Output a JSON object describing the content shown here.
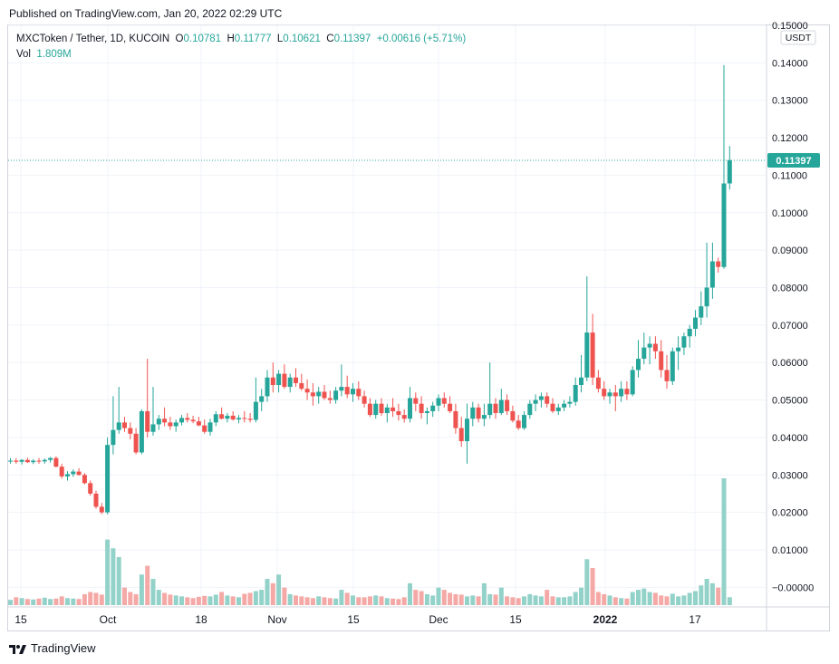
{
  "header": {
    "published": "Published on TradingView.com, Jan 20, 2022 02:29 UTC"
  },
  "legend": {
    "symbol": "MXCToken / Tether, 1D, KUCOIN",
    "o_label": "O",
    "o_value": "0.10781",
    "h_label": "H",
    "h_value": "0.11777",
    "l_label": "L",
    "l_value": "0.10621",
    "c_label": "C",
    "c_value": "0.11397",
    "change": "+0.00616 (+5.71%)",
    "vol_label": "Vol",
    "vol_value": "1.809M"
  },
  "price_axis": {
    "currency": "USDT",
    "last_price_tag": "0.11397"
  },
  "footer": {
    "brand": "TradingView"
  },
  "colors": {
    "up": "#26a69a",
    "down": "#ef5350",
    "up_volume": "#93d2c9",
    "down_volume": "#f5a9a6",
    "grid": "#f0f3fa",
    "axis_text": "#131722"
  },
  "chart_data": {
    "type": "candlestick",
    "title": "MXCToken / Tether, 1D, KUCOIN",
    "ylim": [
      -0.005,
      0.15
    ],
    "y_ticks": [
      "0.15000",
      "0.14000",
      "0.13000",
      "0.12000",
      "0.11000",
      "0.10000",
      "0.09000",
      "0.08000",
      "0.07000",
      "0.06000",
      "0.05000",
      "0.04000",
      "0.03000",
      "0.02000",
      "0.01000",
      "−0.00000"
    ],
    "x_ticks": [
      "15",
      "Oct",
      "18",
      "Nov",
      "15",
      "Dec",
      "15",
      "2022",
      "17"
    ],
    "last_close": 0.11397,
    "candles": [
      [
        0.0336,
        0.0345,
        0.033,
        0.0338,
        1.2
      ],
      [
        0.0338,
        0.0345,
        0.033,
        0.0335,
        1.8
      ],
      [
        0.0335,
        0.0342,
        0.0328,
        0.034,
        1.6
      ],
      [
        0.034,
        0.0346,
        0.0332,
        0.0334,
        1.4
      ],
      [
        0.0334,
        0.0342,
        0.0329,
        0.0338,
        1.3
      ],
      [
        0.0338,
        0.0345,
        0.033,
        0.0336,
        1.5
      ],
      [
        0.0336,
        0.0344,
        0.033,
        0.034,
        1.7
      ],
      [
        0.034,
        0.0348,
        0.0333,
        0.0345,
        1.4
      ],
      [
        0.0345,
        0.035,
        0.032,
        0.0322,
        1.5
      ],
      [
        0.0322,
        0.033,
        0.029,
        0.0296,
        2.0
      ],
      [
        0.0296,
        0.031,
        0.0285,
        0.0302,
        1.6
      ],
      [
        0.0302,
        0.0315,
        0.0295,
        0.0309,
        1.5
      ],
      [
        0.0309,
        0.0318,
        0.0298,
        0.03,
        1.4
      ],
      [
        0.03,
        0.0305,
        0.0275,
        0.0278,
        2.5
      ],
      [
        0.0278,
        0.0285,
        0.0245,
        0.025,
        3.0
      ],
      [
        0.025,
        0.0258,
        0.021,
        0.0215,
        2.8
      ],
      [
        0.0215,
        0.0225,
        0.0195,
        0.02,
        2.4
      ],
      [
        0.02,
        0.04,
        0.0195,
        0.038,
        15.0
      ],
      [
        0.038,
        0.051,
        0.0355,
        0.042,
        13.0
      ],
      [
        0.042,
        0.0535,
        0.041,
        0.044,
        11.0
      ],
      [
        0.044,
        0.0455,
        0.0415,
        0.0425,
        4.0
      ],
      [
        0.0425,
        0.044,
        0.0395,
        0.041,
        3.0
      ],
      [
        0.041,
        0.0425,
        0.0355,
        0.036,
        2.5
      ],
      [
        0.036,
        0.0475,
        0.0355,
        0.047,
        7.0
      ],
      [
        0.047,
        0.061,
        0.04,
        0.0415,
        9.0
      ],
      [
        0.0415,
        0.0535,
        0.0405,
        0.0435,
        6.0
      ],
      [
        0.0435,
        0.046,
        0.042,
        0.045,
        3.5
      ],
      [
        0.045,
        0.048,
        0.043,
        0.044,
        2.8
      ],
      [
        0.044,
        0.0455,
        0.042,
        0.043,
        2.4
      ],
      [
        0.043,
        0.0448,
        0.0415,
        0.044,
        2.2
      ],
      [
        0.044,
        0.046,
        0.0432,
        0.0452,
        2.0
      ],
      [
        0.0452,
        0.0465,
        0.044,
        0.0447,
        1.8
      ],
      [
        0.0447,
        0.0458,
        0.0438,
        0.0443,
        1.6
      ],
      [
        0.0443,
        0.0455,
        0.043,
        0.0432,
        1.9
      ],
      [
        0.0432,
        0.0448,
        0.041,
        0.0415,
        2.1
      ],
      [
        0.0415,
        0.045,
        0.0405,
        0.044,
        2.0
      ],
      [
        0.044,
        0.047,
        0.043,
        0.0462,
        2.4
      ],
      [
        0.0462,
        0.048,
        0.0448,
        0.045,
        3.0
      ],
      [
        0.045,
        0.0465,
        0.044,
        0.0458,
        2.2
      ],
      [
        0.0458,
        0.047,
        0.0445,
        0.0448,
        2.0
      ],
      [
        0.0448,
        0.046,
        0.0438,
        0.0452,
        1.8
      ],
      [
        0.0452,
        0.047,
        0.044,
        0.045,
        2.6
      ],
      [
        0.045,
        0.0465,
        0.044,
        0.0447,
        2.8
      ],
      [
        0.0447,
        0.056,
        0.044,
        0.0495,
        3.2
      ],
      [
        0.0495,
        0.053,
        0.047,
        0.051,
        3.5
      ],
      [
        0.051,
        0.058,
        0.0495,
        0.056,
        6.0
      ],
      [
        0.056,
        0.06,
        0.052,
        0.054,
        5.0
      ],
      [
        0.054,
        0.058,
        0.052,
        0.057,
        7.0
      ],
      [
        0.057,
        0.0595,
        0.053,
        0.0535,
        4.0
      ],
      [
        0.0535,
        0.057,
        0.052,
        0.056,
        2.5
      ],
      [
        0.056,
        0.0585,
        0.0535,
        0.0545,
        2.2
      ],
      [
        0.0545,
        0.057,
        0.0525,
        0.053,
        2.0
      ],
      [
        0.053,
        0.0555,
        0.05,
        0.052,
        1.8
      ],
      [
        0.052,
        0.0545,
        0.0485,
        0.051,
        1.6
      ],
      [
        0.051,
        0.0535,
        0.049,
        0.0522,
        2.0
      ],
      [
        0.0522,
        0.054,
        0.05,
        0.0505,
        1.8
      ],
      [
        0.0505,
        0.0525,
        0.049,
        0.05,
        1.6
      ],
      [
        0.05,
        0.0535,
        0.049,
        0.0525,
        1.5
      ],
      [
        0.0525,
        0.0595,
        0.051,
        0.0535,
        3.5
      ],
      [
        0.0535,
        0.0565,
        0.0505,
        0.0515,
        2.8
      ],
      [
        0.0515,
        0.0545,
        0.0495,
        0.053,
        2.2
      ],
      [
        0.053,
        0.055,
        0.05,
        0.051,
        1.8
      ],
      [
        0.051,
        0.0525,
        0.048,
        0.049,
        1.8
      ],
      [
        0.049,
        0.0505,
        0.0455,
        0.046,
        2.0
      ],
      [
        0.046,
        0.05,
        0.045,
        0.049,
        2.2
      ],
      [
        0.049,
        0.0505,
        0.0458,
        0.0465,
        2.0
      ],
      [
        0.0465,
        0.049,
        0.044,
        0.048,
        1.6
      ],
      [
        0.048,
        0.0505,
        0.0455,
        0.047,
        1.5
      ],
      [
        0.047,
        0.049,
        0.0445,
        0.046,
        1.4
      ],
      [
        0.046,
        0.0475,
        0.044,
        0.045,
        1.8
      ],
      [
        0.045,
        0.0535,
        0.044,
        0.0505,
        5.0
      ],
      [
        0.0505,
        0.052,
        0.047,
        0.049,
        3.5
      ],
      [
        0.049,
        0.051,
        0.045,
        0.0465,
        3.2
      ],
      [
        0.0465,
        0.048,
        0.0435,
        0.047,
        2.5
      ],
      [
        0.047,
        0.0495,
        0.0455,
        0.0485,
        2.2
      ],
      [
        0.0485,
        0.0515,
        0.047,
        0.0505,
        4.0
      ],
      [
        0.0505,
        0.052,
        0.048,
        0.049,
        3.5
      ],
      [
        0.049,
        0.051,
        0.0465,
        0.047,
        2.8
      ],
      [
        0.047,
        0.049,
        0.041,
        0.0425,
        2.5
      ],
      [
        0.0425,
        0.0455,
        0.0375,
        0.039,
        2.4
      ],
      [
        0.039,
        0.049,
        0.033,
        0.045,
        2.0
      ],
      [
        0.045,
        0.0495,
        0.043,
        0.048,
        2.2
      ],
      [
        0.048,
        0.049,
        0.044,
        0.045,
        2.0
      ],
      [
        0.045,
        0.049,
        0.043,
        0.046,
        5.0
      ],
      [
        0.046,
        0.06,
        0.045,
        0.049,
        2.5
      ],
      [
        0.049,
        0.0505,
        0.045,
        0.0465,
        2.4
      ],
      [
        0.0465,
        0.053,
        0.046,
        0.05,
        4.0
      ],
      [
        0.05,
        0.0515,
        0.046,
        0.047,
        2.0
      ],
      [
        0.047,
        0.0485,
        0.044,
        0.0445,
        1.8
      ],
      [
        0.0445,
        0.046,
        0.042,
        0.0425,
        1.6
      ],
      [
        0.0425,
        0.047,
        0.042,
        0.046,
        2.0
      ],
      [
        0.046,
        0.05,
        0.045,
        0.049,
        2.5
      ],
      [
        0.049,
        0.0515,
        0.047,
        0.05,
        2.2
      ],
      [
        0.05,
        0.052,
        0.048,
        0.051,
        2.0
      ],
      [
        0.051,
        0.052,
        0.048,
        0.049,
        3.5
      ],
      [
        0.049,
        0.0505,
        0.0465,
        0.047,
        2.0
      ],
      [
        0.047,
        0.049,
        0.046,
        0.048,
        1.8
      ],
      [
        0.048,
        0.05,
        0.047,
        0.049,
        1.8
      ],
      [
        0.049,
        0.051,
        0.048,
        0.0495,
        2.0
      ],
      [
        0.0495,
        0.056,
        0.0485,
        0.054,
        3.0
      ],
      [
        0.054,
        0.062,
        0.052,
        0.056,
        4.0
      ],
      [
        0.056,
        0.083,
        0.055,
        0.068,
        10.5
      ],
      [
        0.068,
        0.073,
        0.054,
        0.056,
        8.5
      ],
      [
        0.056,
        0.058,
        0.052,
        0.053,
        3.0
      ],
      [
        0.053,
        0.055,
        0.05,
        0.051,
        2.5
      ],
      [
        0.051,
        0.053,
        0.049,
        0.052,
        2.2
      ],
      [
        0.052,
        0.054,
        0.047,
        0.051,
        1.8
      ],
      [
        0.051,
        0.055,
        0.0495,
        0.053,
        1.6
      ],
      [
        0.053,
        0.055,
        0.05,
        0.0515,
        1.5
      ],
      [
        0.0515,
        0.059,
        0.051,
        0.058,
        3.0
      ],
      [
        0.058,
        0.066,
        0.056,
        0.061,
        3.5
      ],
      [
        0.061,
        0.068,
        0.0595,
        0.064,
        3.8
      ],
      [
        0.064,
        0.067,
        0.0595,
        0.065,
        3.0
      ],
      [
        0.065,
        0.067,
        0.061,
        0.063,
        2.8
      ],
      [
        0.063,
        0.066,
        0.056,
        0.058,
        2.2
      ],
      [
        0.058,
        0.062,
        0.053,
        0.055,
        2.0
      ],
      [
        0.055,
        0.064,
        0.054,
        0.063,
        2.6
      ],
      [
        0.063,
        0.067,
        0.058,
        0.064,
        2.0
      ],
      [
        0.064,
        0.068,
        0.062,
        0.067,
        2.2
      ],
      [
        0.067,
        0.07,
        0.064,
        0.069,
        2.8
      ],
      [
        0.069,
        0.074,
        0.067,
        0.072,
        3.2
      ],
      [
        0.072,
        0.079,
        0.07,
        0.075,
        4.5
      ],
      [
        0.075,
        0.092,
        0.072,
        0.08,
        6.0
      ],
      [
        0.08,
        0.092,
        0.077,
        0.087,
        5.0
      ],
      [
        0.087,
        0.088,
        0.084,
        0.0855,
        4.0
      ],
      [
        0.0855,
        0.1394,
        0.085,
        0.1078,
        29.0
      ],
      [
        0.1078,
        0.1178,
        0.1062,
        0.114,
        1.8
      ]
    ]
  }
}
